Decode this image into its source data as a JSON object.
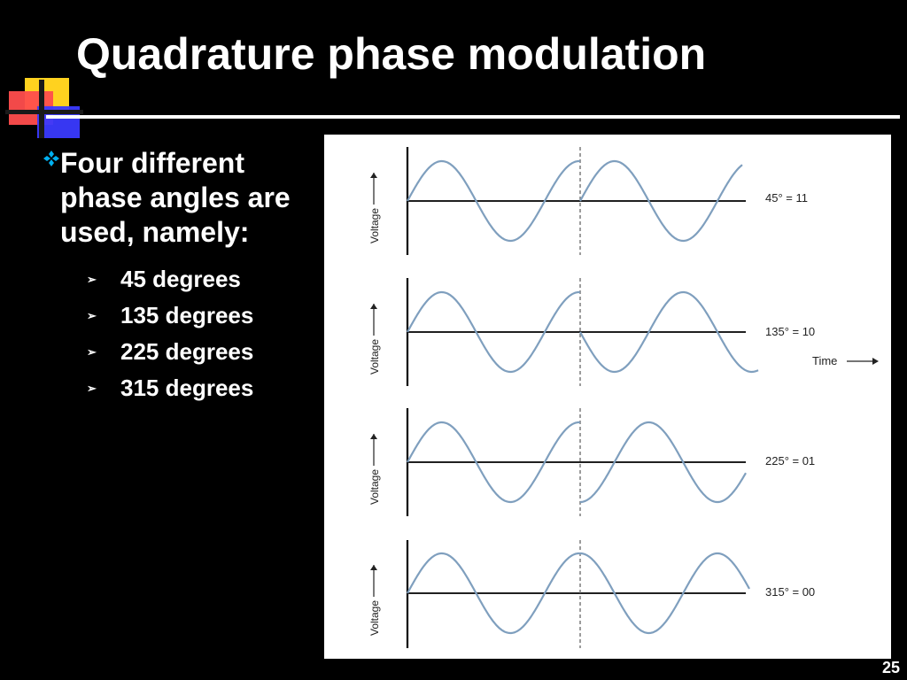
{
  "slide": {
    "title": "Quadrature phase modulation",
    "page_number": "25"
  },
  "bullets": {
    "main": "Four different phase angles are used, namely:",
    "items": [
      "45 degrees",
      "135 degrees",
      "225 degrees",
      "315 degrees"
    ]
  },
  "diagram": {
    "y_axis_label": "Voltage",
    "time_label": "Time",
    "panels": [
      {
        "label": "45° = 11"
      },
      {
        "label": "135° = 10"
      },
      {
        "label": "225° = 01"
      },
      {
        "label": "315° = 00"
      }
    ]
  },
  "colors": {
    "wave": "#7f9fbe",
    "bullet_marker": "#00b0f0",
    "logo_red": "#ff3b3b",
    "logo_yellow": "#ffd21f",
    "logo_blue": "#3a3aff"
  }
}
